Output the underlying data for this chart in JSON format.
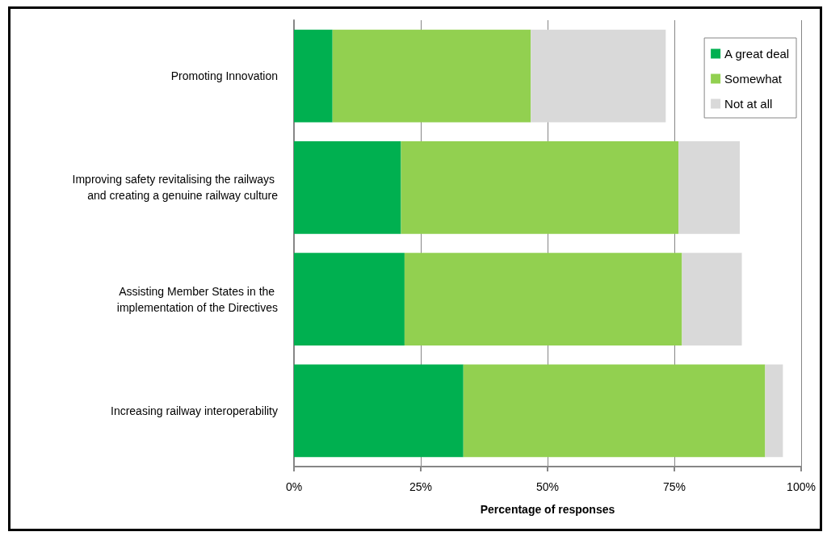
{
  "chart_data": {
    "type": "bar",
    "orientation": "horizontal",
    "stacked": true,
    "xlabel": "Percentage of responses",
    "categories": [
      "Promoting Innovation",
      "Improving safety revitalising the railways and creating a genuine railway culture",
      "Assisting Member States in the implementation of the Directives",
      "Increasing railway interoperability"
    ],
    "series": [
      {
        "name": "A great deal",
        "color": "#00b050",
        "values": [
          7.6,
          21.1,
          21.8,
          33.4
        ]
      },
      {
        "name": "Somewhat",
        "color": "#92d050",
        "values": [
          39.1,
          54.7,
          54.7,
          59.5
        ]
      },
      {
        "name": "Not at all",
        "color": "#d9d9d9",
        "values": [
          26.6,
          12.1,
          11.8,
          3.5
        ]
      }
    ],
    "xlim": [
      0,
      100
    ],
    "xticks": [
      {
        "value": 0,
        "label": "0%"
      },
      {
        "value": 25,
        "label": "25%"
      },
      {
        "value": 50,
        "label": "50%"
      },
      {
        "value": 75,
        "label": "75%"
      },
      {
        "value": 100,
        "label": "100%"
      }
    ],
    "grid": "x",
    "legend": "top right"
  }
}
